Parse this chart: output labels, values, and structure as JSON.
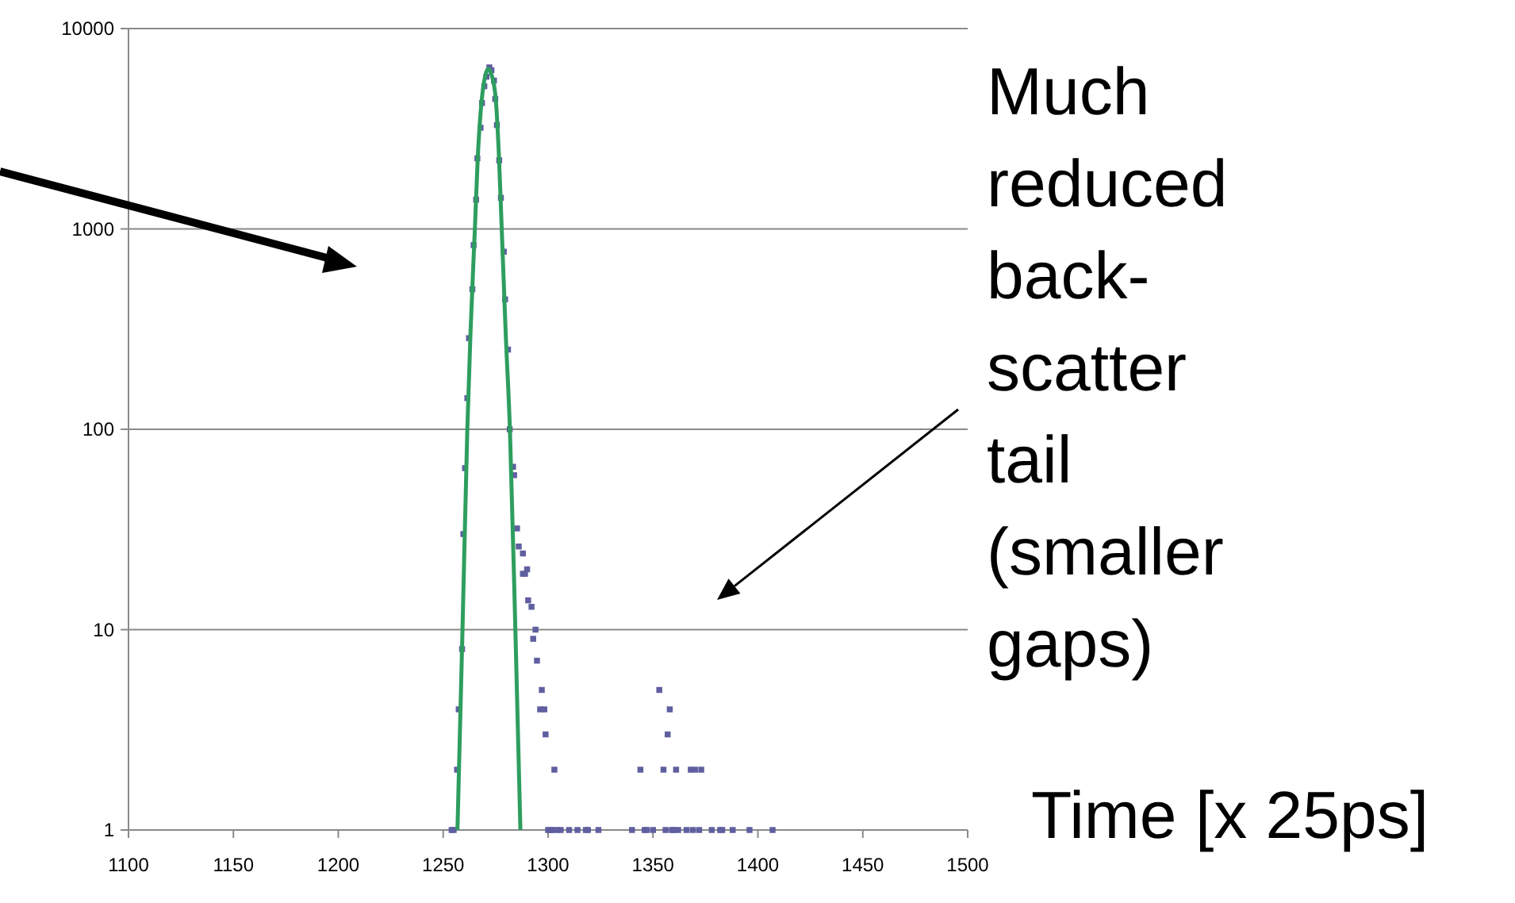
{
  "chart_data": {
    "type": "scatter",
    "xlabel": "Time [x 25ps]",
    "log": "y",
    "grid": "y",
    "xlim": [
      1100,
      1500
    ],
    "xticks": [
      1100,
      1150,
      1200,
      1250,
      1300,
      1350,
      1400,
      1450,
      1500
    ],
    "ylim": [
      1,
      10000
    ],
    "yticks": [
      1,
      10,
      100,
      1000,
      10000
    ],
    "annotations": [
      "Much reduced back-scatter tail (smaller gaps)"
    ],
    "series": [
      {
        "marker": "square",
        "color": "#5f5fa0",
        "x": [
          1254,
          1255,
          1256.6,
          1257.4,
          1259,
          1259.6,
          1260.4,
          1261.5,
          1262.3,
          1263.9,
          1264.5,
          1265.7,
          1266.3,
          1267.8,
          1268.5,
          1269.6,
          1270.6,
          1272,
          1273,
          1274.2,
          1274.8,
          1275.6,
          1276.7,
          1277.5,
          1278.9,
          1279.5,
          1280.9,
          1281.7,
          1283.3,
          1283.8,
          1285.2,
          1286,
          1288,
          1288,
          1289,
          1290,
          1290.5,
          1292.1,
          1292.9,
          1294,
          1294.7,
          1296.2,
          1297,
          1298.2,
          1298.8,
          1303,
          1300,
          1301,
          1302,
          1304,
          1306,
          1310,
          1314,
          1318,
          1319,
          1324,
          1340,
          1344,
          1346,
          1347,
          1350,
          1353,
          1355,
          1356,
          1358,
          1357,
          1359,
          1360,
          1361,
          1362,
          1366,
          1368,
          1369,
          1370,
          1372,
          1373,
          1378,
          1382,
          1383,
          1388,
          1396,
          1407
        ],
        "values": [
          1,
          1,
          2,
          4,
          8,
          30,
          64,
          143,
          285,
          500,
          830,
          1400,
          2250,
          3200,
          4250,
          5150,
          5750,
          6400,
          6200,
          5500,
          4450,
          3300,
          2200,
          1430,
          770,
          445,
          250,
          100,
          65,
          59,
          32,
          26,
          24,
          19,
          19,
          20,
          14,
          13,
          9,
          10,
          7,
          4,
          5,
          4,
          3,
          2,
          1,
          1,
          1,
          1,
          1,
          1,
          1,
          1,
          1,
          1,
          1,
          2,
          1,
          1,
          1,
          5,
          2,
          1,
          4,
          3,
          1,
          1,
          2,
          1,
          1,
          2,
          1,
          2,
          1,
          2,
          1,
          1,
          1,
          1,
          1,
          1
        ]
      },
      {
        "type": "line",
        "color": "#2e9e5e",
        "x": [
          1256.8,
          1259.2,
          1261.5,
          1263,
          1265.1,
          1266.5,
          1268,
          1270,
          1271.5,
          1273,
          1275,
          1276.5,
          1277.9,
          1279.8,
          1281.8,
          1284.4,
          1286.8
        ],
        "values": [
          1,
          10,
          100,
          300,
          1000,
          2300,
          4000,
          5800,
          6300,
          5900,
          4500,
          2400,
          1000,
          300,
          100,
          10,
          1
        ]
      }
    ]
  }
}
